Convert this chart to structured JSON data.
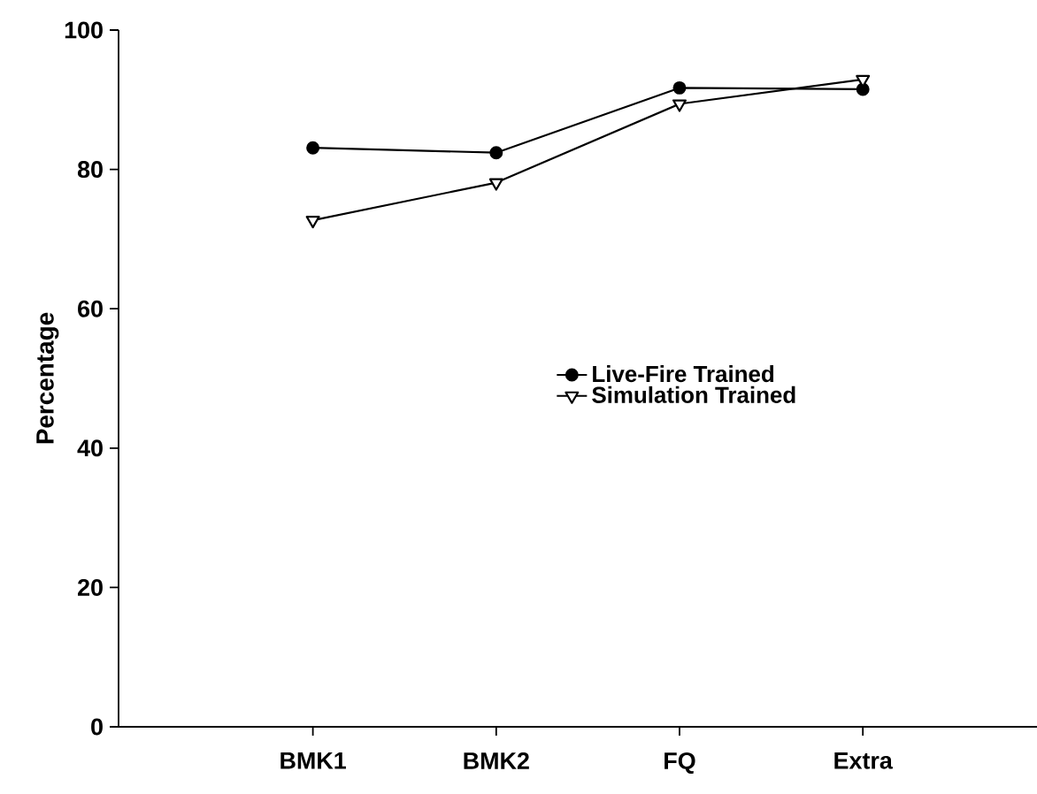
{
  "chart_data": {
    "type": "line",
    "ylabel": "Percentage",
    "categories": [
      "BMK1",
      "BMK2",
      "FQ",
      "Extra"
    ],
    "series": [
      {
        "name": "Live-Fire Trained",
        "color": "#000000",
        "marker": "circle",
        "values": [
          83.1,
          82.4,
          91.7,
          91.5
        ]
      },
      {
        "name": "Simulation Trained",
        "color": "#000000",
        "marker": "triangle",
        "values": [
          72.7,
          78.1,
          89.4,
          92.9
        ]
      }
    ],
    "ylim": [
      0,
      100
    ],
    "yticks": [
      0,
      20,
      40,
      60,
      80,
      100
    ],
    "legend": "right"
  }
}
